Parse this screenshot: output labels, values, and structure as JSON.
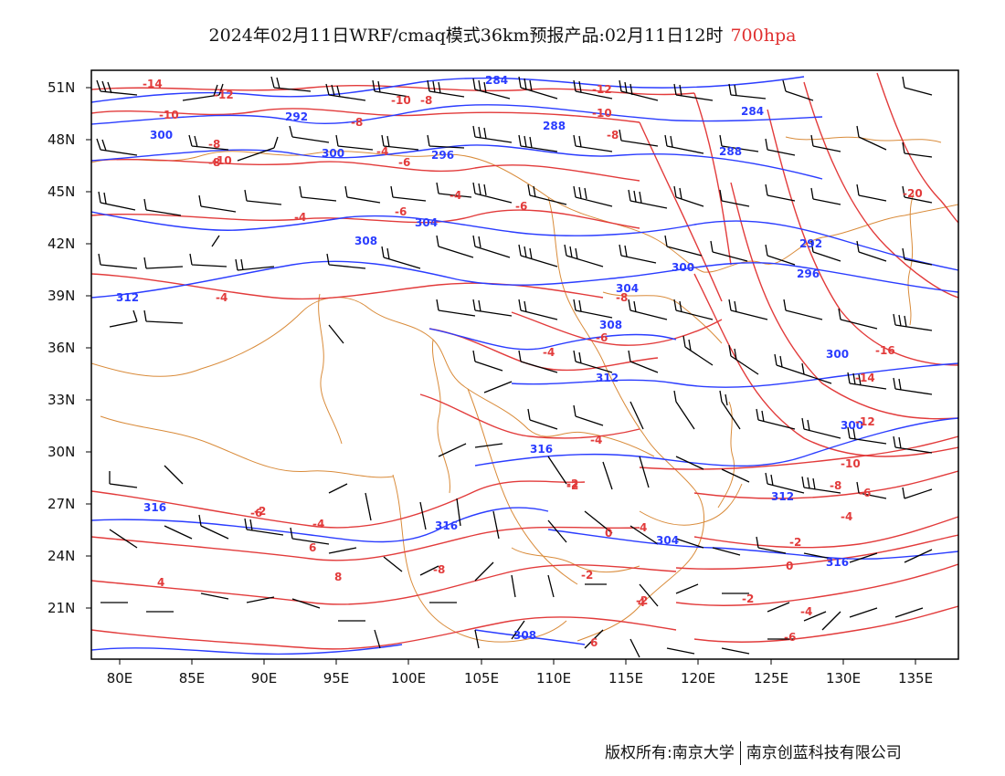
{
  "title": {
    "main": "2024年02月11日WRF/cmaq模式36km预报产品:02月11日12时",
    "level": "700hpa",
    "level_color": "#e03030"
  },
  "axes": {
    "lat_labels": [
      "51N",
      "48N",
      "45N",
      "42N",
      "39N",
      "36N",
      "33N",
      "30N",
      "27N",
      "24N",
      "21N"
    ],
    "lon_labels": [
      "80E",
      "85E",
      "90E",
      "95E",
      "100E",
      "105E",
      "110E",
      "115E",
      "120E",
      "125E",
      "130E",
      "135E"
    ]
  },
  "legend_colors": {
    "height_contour": "#2a3cff",
    "temperature_contour": "#e23b3b",
    "border": "#d98b3a",
    "wind_barb": "#000000"
  },
  "height_labels": [
    "300",
    "292",
    "300",
    "296",
    "284",
    "288",
    "284",
    "288",
    "304",
    "308",
    "292",
    "296",
    "300",
    "312",
    "304",
    "300",
    "308",
    "312",
    "316",
    "316",
    "312",
    "316",
    "304",
    "300",
    "316",
    "308"
  ],
  "temp_labels": [
    "-14",
    "-10",
    "-12",
    "-10",
    "-8",
    "-8",
    "-10",
    "-8",
    "-6",
    "-12",
    "-10",
    "-8",
    "-6",
    "-4",
    "-4",
    "-6",
    "-4",
    "-4",
    "-8",
    "-6",
    "-4",
    "-16",
    "-14",
    "-12",
    "-10",
    "-8",
    "-6",
    "-4",
    "-2",
    "-2",
    "-4",
    "-6",
    "-8",
    "0",
    "-2",
    "0",
    "-2",
    "-2",
    "-4",
    "-6",
    "-8",
    "-2",
    "4",
    "6",
    "8",
    "-4",
    "4",
    "-2",
    "4",
    "6",
    "-20"
  ],
  "footer": {
    "left": "版权所有:南京大学",
    "right": "南京创蓝科技有限公司"
  }
}
